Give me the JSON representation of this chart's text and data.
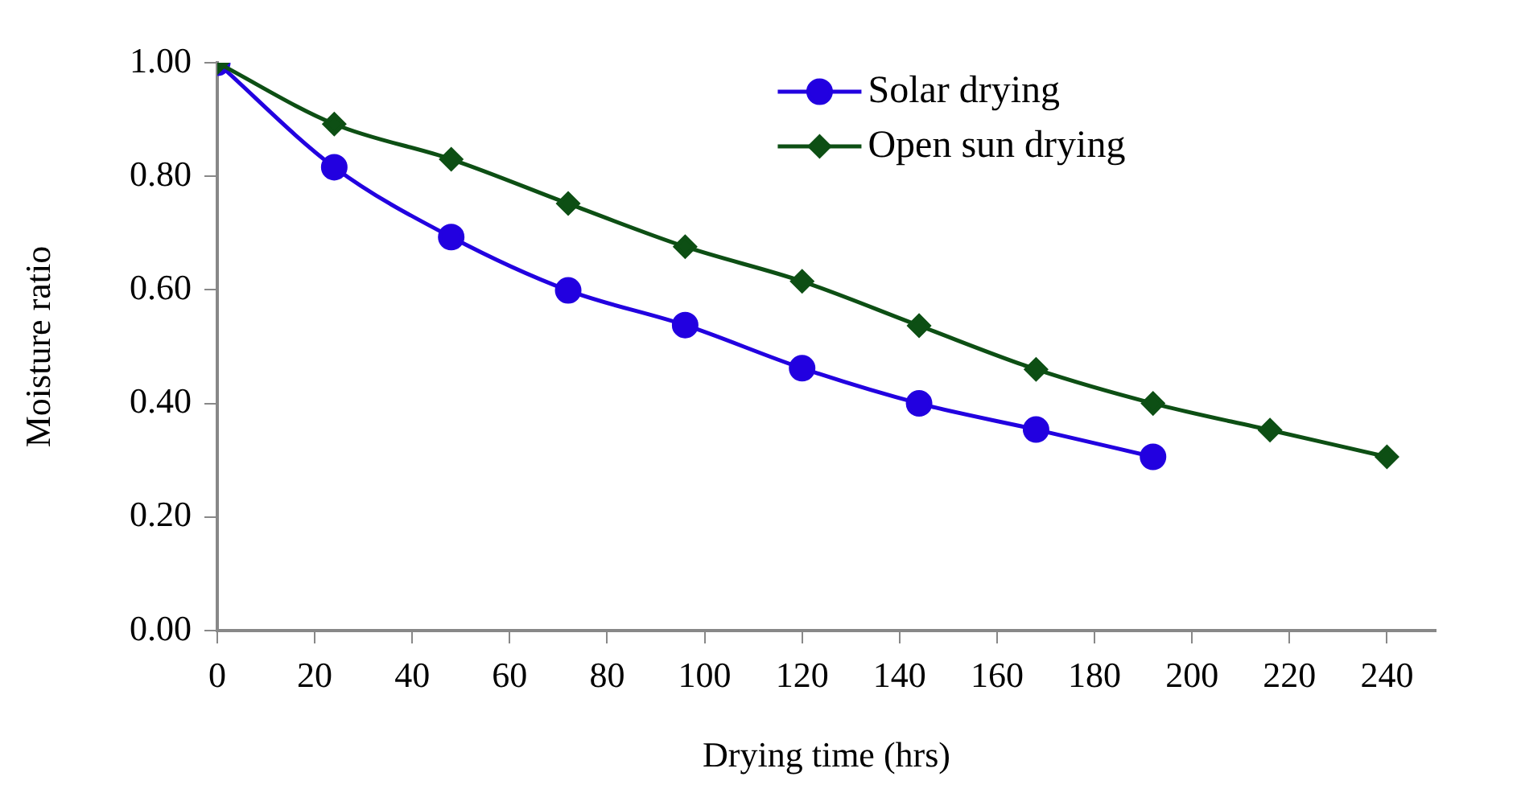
{
  "chart_data": {
    "type": "line",
    "xlabel": "Drying time (hrs)",
    "ylabel": "Moisture ratio",
    "xlim": [
      0,
      250
    ],
    "xticks": [
      0,
      20,
      40,
      60,
      80,
      100,
      120,
      140,
      160,
      180,
      200,
      220,
      240
    ],
    "ylim": [
      0,
      1
    ],
    "yticks": [
      {
        "value": 0,
        "label": "0.00"
      },
      {
        "value": 0.2,
        "label": "0.20"
      },
      {
        "value": 0.4,
        "label": "0.40"
      },
      {
        "value": 0.6,
        "label": "0.60"
      },
      {
        "value": 0.8,
        "label": "0.80"
      },
      {
        "value": 1,
        "label": "1.00"
      }
    ],
    "grid": false,
    "legend": "top right",
    "series": [
      {
        "name": "Solar drying",
        "color": "#2200e0",
        "marker": "circle",
        "x": [
          0,
          24,
          48,
          72,
          96,
          120,
          144,
          168,
          192
        ],
        "values": [
          1.0,
          0.816,
          0.693,
          0.599,
          0.538,
          0.462,
          0.4,
          0.354,
          0.306
        ]
      },
      {
        "name": "Open sun drying",
        "color": "#0d4f14",
        "marker": "diamond",
        "x": [
          0,
          24,
          48,
          72,
          96,
          120,
          144,
          168,
          192,
          216,
          240
        ],
        "values": [
          1.0,
          0.892,
          0.83,
          0.752,
          0.676,
          0.615,
          0.537,
          0.46,
          0.4,
          0.353,
          0.306
        ]
      }
    ]
  }
}
